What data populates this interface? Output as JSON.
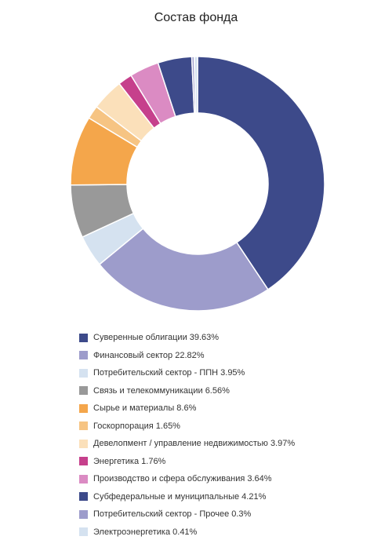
{
  "chart_data": {
    "type": "pie",
    "title": "Состав фонда",
    "series": [
      {
        "name": "Суверенные облигации",
        "value": 39.63,
        "color": "#3d4a8a",
        "legend": "Суверенные облигации 39.63%"
      },
      {
        "name": "Финансовый сектор",
        "value": 22.82,
        "color": "#9d9ccb",
        "legend": "Финансовый сектор 22.82%"
      },
      {
        "name": "Потребительский сектор - ППН",
        "value": 3.95,
        "color": "#d5e2f0",
        "legend": "Потребительский сектор - ППН 3.95%"
      },
      {
        "name": "Связь и телекоммуникации",
        "value": 6.56,
        "color": "#999999",
        "legend": "Связь и телекоммуникации 6.56%"
      },
      {
        "name": "Сырье и материалы",
        "value": 8.6,
        "color": "#f4a64b",
        "legend": "Сырье и материалы 8.6%"
      },
      {
        "name": "Госкорпорация",
        "value": 1.65,
        "color": "#f6c483",
        "legend": "Госкорпорация 1.65%"
      },
      {
        "name": "Девелопмент / управление недвижимостью",
        "value": 3.97,
        "color": "#fbe0ba",
        "legend": "Девелопмент / управление недвижимостью 3.97%"
      },
      {
        "name": "Энергетика",
        "value": 1.76,
        "color": "#c6408c",
        "legend": "Энергетика 1.76%"
      },
      {
        "name": "Производство и сфера обслуживания",
        "value": 3.64,
        "color": "#db8bc3",
        "legend": "Производство и сфера обслуживания 3.64%"
      },
      {
        "name": "Субфедеральные и муниципальные",
        "value": 4.21,
        "color": "#3d4a8a",
        "legend": "Субфедеральные и муниципальные 4.21%"
      },
      {
        "name": "Потребительский сектор - Прочее",
        "value": 0.3,
        "color": "#9d9ccb",
        "legend": "Потребительский сектор - Прочее 0.3%"
      },
      {
        "name": "Электроэнергетика",
        "value": 0.41,
        "color": "#d5e2f0",
        "legend": "Электроэнергетика 0.41%"
      }
    ],
    "legend_position": "bottom"
  }
}
